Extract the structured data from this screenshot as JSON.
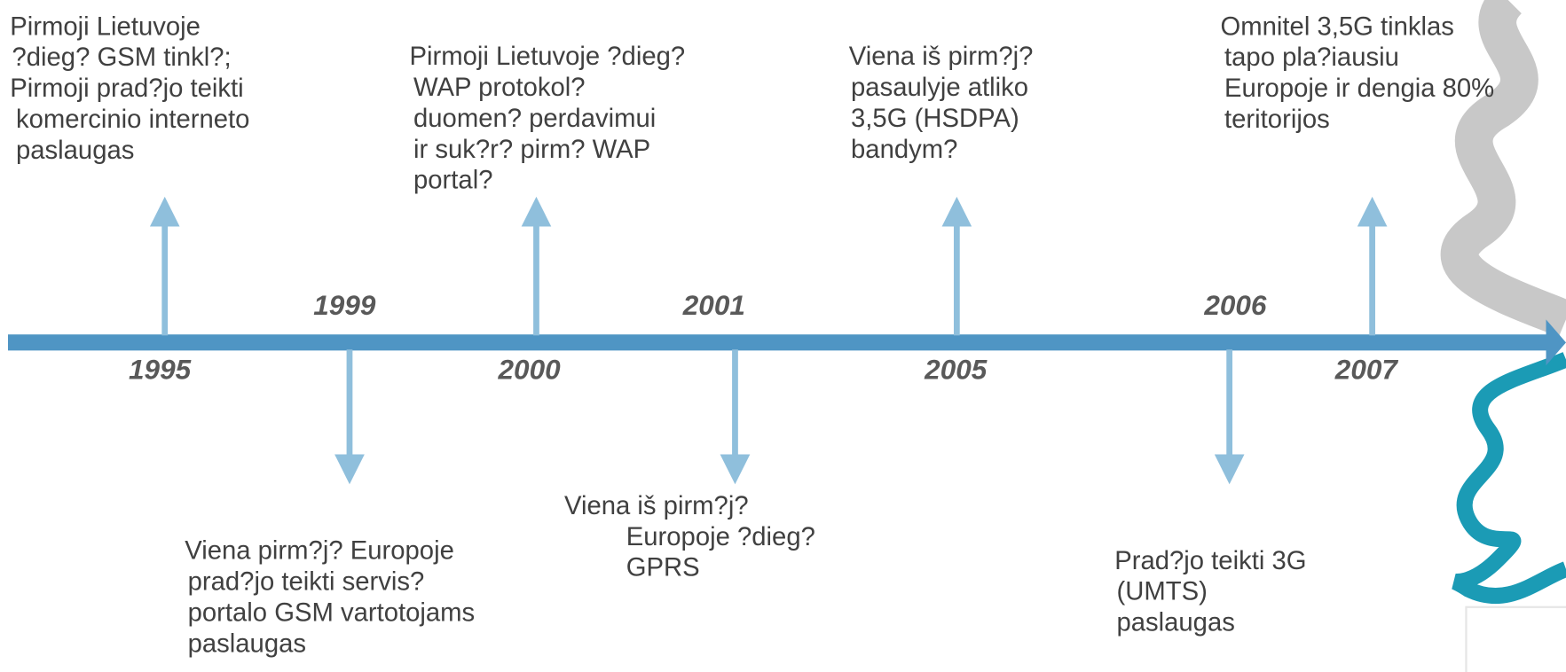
{
  "events": [
    {
      "year": "1995",
      "lines": [
        "Pirmoji Lietuvoje",
        "?dieg? GSM tinkl?;",
        "Pirmoji prad?jo teikti",
        "komercinio interneto",
        "paslaugas"
      ]
    },
    {
      "year": "1999",
      "lines": [
        "Viena pirm?j? Europoje",
        "prad?jo teikti servis?",
        "portalo GSM vartotojams",
        "paslaugas"
      ]
    },
    {
      "year": "2000",
      "lines": [
        "Pirmoji Lietuvoje ?dieg?",
        "WAP protokol?",
        "duomen? perdavimui",
        "ir suk?r? pirm? WAP",
        "portal?"
      ]
    },
    {
      "year": "2001",
      "lines": [
        "Viena iš pirm?j?",
        "Europoje ?dieg?",
        "GPRS"
      ]
    },
    {
      "year": "2005",
      "lines": [
        "Viena iš pirm?j?",
        "pasaulyje atliko",
        "3,5G (HSDPA)",
        "bandym?"
      ]
    },
    {
      "year": "2006",
      "lines": [
        "Prad?jo teikti 3G",
        "(UMTS)",
        "paslaugas"
      ]
    },
    {
      "year": "2007",
      "lines": [
        "Omnitel 3,5G tinklas",
        "tapo pla?iausiu",
        "Europoje ir dengia 80%",
        "teritorijos"
      ]
    }
  ]
}
